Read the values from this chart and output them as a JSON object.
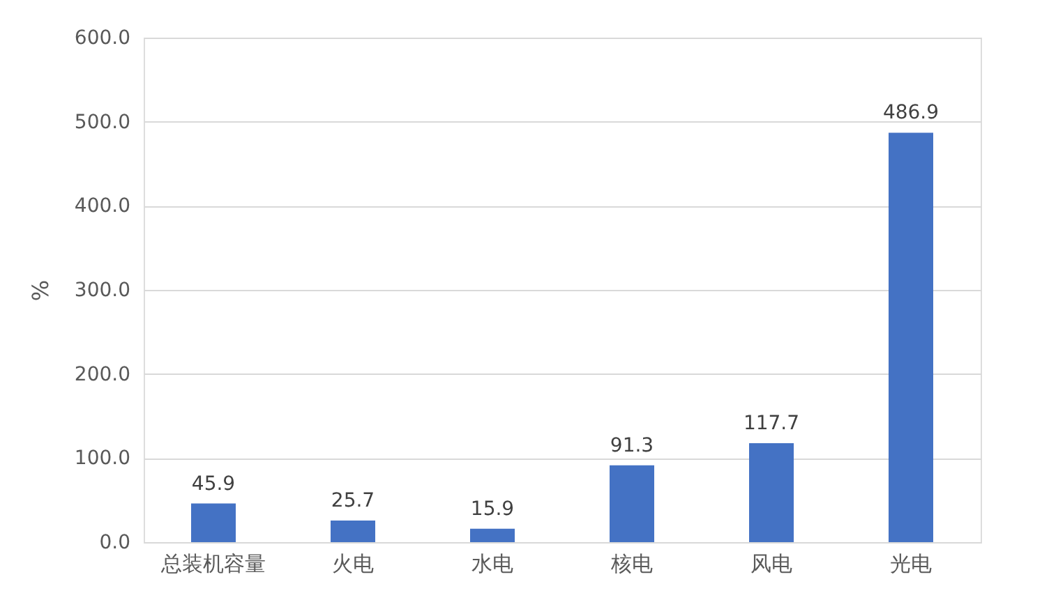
{
  "chart_data": {
    "type": "bar",
    "ylabel": "%",
    "categories": [
      "总装机容量",
      "火电",
      "水电",
      "核电",
      "风电",
      "光电"
    ],
    "values": [
      45.9,
      25.7,
      15.9,
      91.3,
      117.7,
      486.9
    ],
    "color": "#4472c4",
    "ylim": [
      0,
      600
    ],
    "yticks": [
      {
        "value": 0,
        "label": "0.0"
      },
      {
        "value": 100,
        "label": "100.0"
      },
      {
        "value": 200,
        "label": "200.0"
      },
      {
        "value": 300,
        "label": "300.0"
      },
      {
        "value": 400,
        "label": "400.0"
      },
      {
        "value": 500,
        "label": "500.0"
      },
      {
        "value": 600,
        "label": "600.0"
      }
    ],
    "grid": "y",
    "data_labels": true
  }
}
